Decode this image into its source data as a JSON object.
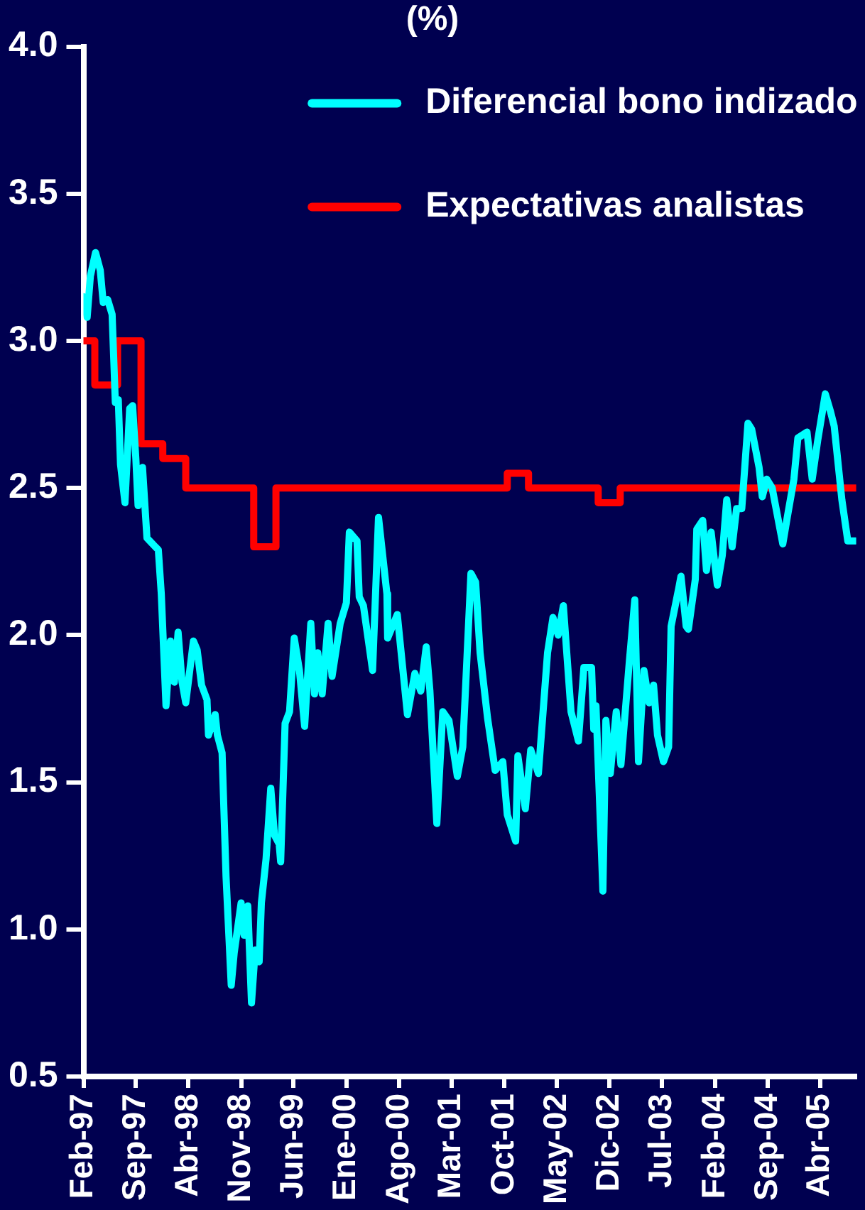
{
  "chart_data": {
    "type": "line",
    "title": "(%)",
    "legend": "top right",
    "grid": false,
    "marker": "none",
    "line_style": "solid",
    "xlim": [
      "1997-02-01",
      "2005-08-25"
    ],
    "xticks": [
      {
        "value": "1997-02",
        "label": "Feb-97"
      },
      {
        "value": "1997-09",
        "label": "Sep-97"
      },
      {
        "value": "1998-04",
        "label": "Abr-98"
      },
      {
        "value": "1998-11",
        "label": "Nov-98"
      },
      {
        "value": "1999-06",
        "label": "Jun-99"
      },
      {
        "value": "2000-01",
        "label": "Ene-00"
      },
      {
        "value": "2000-08",
        "label": "Ago-00"
      },
      {
        "value": "2001-03",
        "label": "Mar-01"
      },
      {
        "value": "2001-10",
        "label": "Oct-01"
      },
      {
        "value": "2002-05",
        "label": "May-02"
      },
      {
        "value": "2002-12",
        "label": "Dic-02"
      },
      {
        "value": "2003-07",
        "label": "Jul-03"
      },
      {
        "value": "2004-02",
        "label": "Feb-04"
      },
      {
        "value": "2004-09",
        "label": "Sep-04"
      },
      {
        "value": "2005-04",
        "label": "Abr-05"
      }
    ],
    "ylim": [
      0.5,
      4.0
    ],
    "yticks": [
      {
        "value": 0.5,
        "label": "0.5"
      },
      {
        "value": 1.0,
        "label": "1.0"
      },
      {
        "value": 1.5,
        "label": "1.5"
      },
      {
        "value": 2.0,
        "label": "2.0"
      },
      {
        "value": 2.5,
        "label": "2.5"
      },
      {
        "value": 3.0,
        "label": "3.0"
      },
      {
        "value": 3.5,
        "label": "3.5"
      },
      {
        "value": 4.0,
        "label": "4.0"
      }
    ],
    "series": [
      {
        "name": "Diferencial bono indizado",
        "color": "#00ffff",
        "x": [
          "1997-02-01",
          "1997-02-16",
          "1997-03-01",
          "1997-03-22",
          "1997-04-10",
          "1997-04-22",
          "1997-05-10",
          "1997-05-28",
          "1997-06-10",
          "1997-06-22",
          "1997-07-01",
          "1997-07-19",
          "1997-08-07",
          "1997-08-19",
          "1997-09-01",
          "1997-09-10",
          "1997-09-28",
          "1997-10-16",
          "1997-11-19",
          "1997-12-01",
          "1997-12-13",
          "1998-01-01",
          "1998-01-19",
          "1998-02-04",
          "1998-02-19",
          "1998-03-07",
          "1998-03-22",
          "1998-04-22",
          "1998-05-07",
          "1998-05-25",
          "1998-06-16",
          "1998-06-22",
          "1998-07-19",
          "1998-07-28",
          "1998-08-16",
          "1998-09-01",
          "1998-09-22",
          "1998-10-04",
          "1998-11-01",
          "1998-11-13",
          "1998-11-28",
          "1998-12-13",
          "1998-12-28",
          "1999-01-13",
          "1999-01-22",
          "1999-02-10",
          "1999-03-01",
          "1999-03-16",
          "1999-04-04",
          "1999-04-10",
          "1999-04-28",
          "1999-05-16",
          "1999-06-04",
          "1999-06-25",
          "1999-07-16",
          "1999-08-10",
          "1999-08-25",
          "1999-09-07",
          "1999-09-25",
          "1999-10-19",
          "1999-11-04",
          "1999-12-07",
          "2000-01-01",
          "2000-01-13",
          "2000-02-13",
          "2000-02-22",
          "2000-03-10",
          "2000-04-16",
          "2000-05-10",
          "2000-06-13",
          "2000-06-16",
          "2000-07-25",
          "2000-09-04",
          "2000-10-04",
          "2000-10-28",
          "2000-11-19",
          "2000-12-04",
          "2001-01-01",
          "2001-01-25",
          "2001-02-19",
          "2001-03-25",
          "2001-04-16",
          "2001-05-19",
          "2001-06-07",
          "2001-06-25",
          "2001-07-25",
          "2001-08-25",
          "2001-09-25",
          "2001-10-13",
          "2001-11-16",
          "2001-11-25",
          "2001-12-25",
          "2002-01-16",
          "2002-02-16",
          "2002-03-25",
          "2002-04-16",
          "2002-05-07",
          "2002-05-28",
          "2002-06-28",
          "2002-07-28",
          "2002-08-19",
          "2002-09-19",
          "2002-09-28",
          "2002-10-07",
          "2002-11-04",
          "2002-11-16",
          "2002-12-04",
          "2002-12-28",
          "2003-01-16",
          "2003-02-19",
          "2003-03-13",
          "2003-03-28",
          "2003-04-19",
          "2003-05-10",
          "2003-05-28",
          "2003-06-13",
          "2003-07-07",
          "2003-07-28",
          "2003-08-07",
          "2003-09-07",
          "2003-09-16",
          "2003-10-07",
          "2003-10-16",
          "2003-11-13",
          "2003-11-19",
          "2003-12-13",
          "2003-12-28",
          "2004-01-16",
          "2004-02-10",
          "2004-03-01",
          "2004-03-19",
          "2004-04-10",
          "2004-04-28",
          "2004-05-19",
          "2004-06-13",
          "2004-06-28",
          "2004-07-28",
          "2004-08-10",
          "2004-08-28",
          "2004-09-19",
          "2004-11-01",
          "2004-11-19",
          "2004-12-16",
          "2005-01-01",
          "2005-02-07",
          "2005-02-28",
          "2005-03-22",
          "2005-04-22",
          "2005-05-13",
          "2005-05-28",
          "2005-06-28",
          "2005-07-22",
          "2005-08-22"
        ],
        "values": [
          3.15,
          3.08,
          3.22,
          3.3,
          3.24,
          3.13,
          3.14,
          3.09,
          2.79,
          2.8,
          2.58,
          2.45,
          2.77,
          2.78,
          2.6,
          2.44,
          2.57,
          2.33,
          2.3,
          2.29,
          2.14,
          1.76,
          1.98,
          1.84,
          2.01,
          1.84,
          1.77,
          1.98,
          1.95,
          1.83,
          1.78,
          1.66,
          1.73,
          1.66,
          1.6,
          1.18,
          0.81,
          0.92,
          1.09,
          0.98,
          1.08,
          0.75,
          0.93,
          0.89,
          1.09,
          1.24,
          1.48,
          1.32,
          1.29,
          1.23,
          1.7,
          1.74,
          1.99,
          1.88,
          1.69,
          2.04,
          1.8,
          1.94,
          1.8,
          2.04,
          1.86,
          2.04,
          2.11,
          2.35,
          2.32,
          2.13,
          2.1,
          1.88,
          2.4,
          2.14,
          1.99,
          2.07,
          1.73,
          1.87,
          1.81,
          1.96,
          1.81,
          1.36,
          1.74,
          1.71,
          1.52,
          1.62,
          2.21,
          2.18,
          1.94,
          1.72,
          1.54,
          1.57,
          1.39,
          1.3,
          1.59,
          1.41,
          1.61,
          1.53,
          1.94,
          2.06,
          2.0,
          2.1,
          1.74,
          1.64,
          1.89,
          1.89,
          1.68,
          1.76,
          1.13,
          1.71,
          1.53,
          1.74,
          1.56,
          1.91,
          2.12,
          1.57,
          1.88,
          1.77,
          1.83,
          1.66,
          1.57,
          1.62,
          2.03,
          2.16,
          2.2,
          2.03,
          2.02,
          2.19,
          2.36,
          2.39,
          2.22,
          2.35,
          2.17,
          2.27,
          2.46,
          2.3,
          2.43,
          2.43,
          2.72,
          2.7,
          2.57,
          2.47,
          2.53,
          2.5,
          2.31,
          2.4,
          2.53,
          2.67,
          2.69,
          2.53,
          2.66,
          2.82,
          2.76,
          2.71,
          2.46,
          2.32,
          2.32
        ]
      },
      {
        "name": "Expectativas analistas",
        "color": "#ff0000",
        "type": "step",
        "x": [
          "1997-02-01",
          "1997-03-19",
          "1997-06-19",
          "1997-09-22",
          "1997-12-19",
          "1998-03-22",
          "1998-12-22",
          "1999-03-22",
          "2001-10-13",
          "2002-01-07",
          "2002-10-16",
          "2003-01-13",
          "2005-08-25"
        ],
        "values": [
          3.0,
          2.85,
          3.0,
          2.65,
          2.6,
          2.5,
          2.3,
          2.5,
          2.55,
          2.5,
          2.45,
          2.5,
          2.5
        ]
      }
    ]
  }
}
